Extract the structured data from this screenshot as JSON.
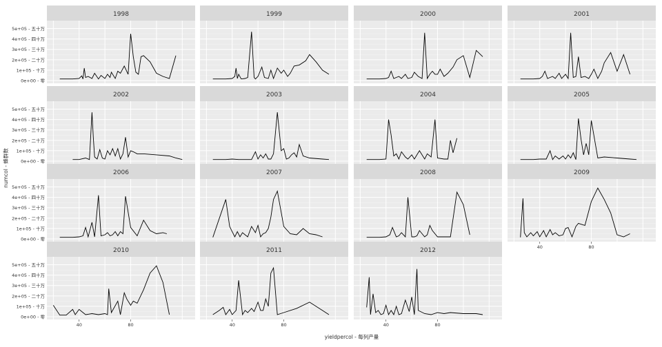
{
  "chart_data": {
    "type": "line",
    "layout": "facet_wrap",
    "xlabel": "yieldpercol - 每列产量",
    "ylabel": "numcol - 蜂群数",
    "ylim": [
      0,
      550000
    ],
    "y_ticks": [
      {
        "value": 0,
        "label": "0e+00 - 零"
      },
      {
        "value": 100000,
        "label": "1e+05 - 十万"
      },
      {
        "value": 200000,
        "label": "2e+05 - 二十万"
      },
      {
        "value": 300000,
        "label": "3e+05 - 三十万"
      },
      {
        "value": 400000,
        "label": "4e+05 - 四十万"
      },
      {
        "value": 500000,
        "label": "5e+05 - 五十万"
      }
    ],
    "x_ticks": [
      {
        "value": 40,
        "label": "40"
      },
      {
        "value": 80,
        "label": "80"
      }
    ],
    "xlim": [
      15,
      130
    ],
    "grid": true,
    "panels": [
      {
        "year": "1998",
        "x": [
          25,
          35,
          40,
          42,
          43,
          44,
          45,
          47,
          50,
          52,
          55,
          57,
          60,
          62,
          64,
          65,
          68,
          70,
          72,
          75,
          78,
          80,
          82,
          84,
          86,
          88,
          90,
          95,
          100,
          105,
          110,
          115
        ],
        "y": [
          15000,
          15000,
          20000,
          45000,
          15000,
          120000,
          30000,
          40000,
          20000,
          70000,
          15000,
          50000,
          20000,
          60000,
          30000,
          80000,
          20000,
          90000,
          70000,
          140000,
          60000,
          450000,
          230000,
          80000,
          60000,
          230000,
          240000,
          180000,
          70000,
          40000,
          20000,
          240000
        ]
      },
      {
        "year": "1999",
        "x": [
          25,
          35,
          40,
          42,
          43,
          44,
          45,
          47,
          50,
          52,
          55,
          57,
          58,
          60,
          63,
          65,
          68,
          70,
          72,
          75,
          78,
          80,
          83,
          85,
          88,
          92,
          97,
          100,
          105,
          110,
          115
        ],
        "y": [
          15000,
          15000,
          20000,
          40000,
          120000,
          20000,
          60000,
          15000,
          20000,
          30000,
          470000,
          30000,
          15000,
          40000,
          130000,
          30000,
          20000,
          100000,
          20000,
          120000,
          70000,
          100000,
          40000,
          70000,
          140000,
          150000,
          190000,
          250000,
          180000,
          100000,
          60000
        ]
      },
      {
        "year": "2000",
        "x": [
          25,
          35,
          40,
          42,
          44,
          46,
          48,
          50,
          52,
          55,
          57,
          60,
          62,
          65,
          68,
          70,
          72,
          74,
          76,
          78,
          80,
          82,
          85,
          88,
          92,
          95,
          100,
          105,
          110,
          115
        ],
        "y": [
          15000,
          15000,
          20000,
          30000,
          90000,
          20000,
          30000,
          40000,
          20000,
          60000,
          20000,
          30000,
          80000,
          40000,
          20000,
          460000,
          20000,
          60000,
          90000,
          60000,
          60000,
          110000,
          40000,
          70000,
          130000,
          200000,
          240000,
          30000,
          290000,
          230000
        ]
      },
      {
        "year": "2001",
        "x": [
          25,
          35,
          40,
          42,
          44,
          46,
          48,
          50,
          52,
          55,
          57,
          60,
          62,
          64,
          66,
          68,
          70,
          72,
          75,
          78,
          80,
          82,
          85,
          88,
          90,
          95,
          100,
          105,
          110
        ],
        "y": [
          15000,
          15000,
          20000,
          40000,
          90000,
          20000,
          30000,
          40000,
          20000,
          70000,
          20000,
          60000,
          20000,
          460000,
          30000,
          40000,
          230000,
          30000,
          40000,
          20000,
          60000,
          110000,
          20000,
          90000,
          170000,
          270000,
          90000,
          250000,
          60000
        ]
      },
      {
        "year": "2002",
        "x": [
          35,
          40,
          45,
          48,
          50,
          51,
          52,
          54,
          56,
          58,
          60,
          62,
          64,
          66,
          68,
          70,
          72,
          74,
          76,
          78,
          80,
          82,
          85,
          90,
          100,
          110,
          115,
          120
        ],
        "y": [
          15000,
          15000,
          30000,
          15000,
          470000,
          230000,
          40000,
          20000,
          110000,
          30000,
          20000,
          100000,
          60000,
          120000,
          50000,
          120000,
          20000,
          70000,
          230000,
          40000,
          100000,
          90000,
          70000,
          70000,
          60000,
          50000,
          30000,
          15000
        ]
      },
      {
        "year": "2003",
        "x": [
          25,
          35,
          40,
          45,
          50,
          55,
          58,
          60,
          62,
          64,
          66,
          68,
          70,
          72,
          75,
          78,
          80,
          82,
          84,
          86,
          88,
          90,
          92,
          95,
          100,
          110,
          115
        ],
        "y": [
          15000,
          15000,
          20000,
          15000,
          15000,
          15000,
          90000,
          20000,
          60000,
          30000,
          70000,
          20000,
          20000,
          70000,
          470000,
          100000,
          120000,
          20000,
          30000,
          60000,
          80000,
          40000,
          160000,
          50000,
          30000,
          20000,
          15000
        ]
      },
      {
        "year": "2004",
        "x": [
          25,
          35,
          40,
          42,
          44,
          46,
          48,
          50,
          52,
          55,
          57,
          60,
          62,
          64,
          66,
          70,
          72,
          75,
          78,
          80,
          85,
          88,
          90,
          92,
          95
        ],
        "y": [
          15000,
          15000,
          20000,
          400000,
          250000,
          50000,
          70000,
          20000,
          90000,
          40000,
          20000,
          60000,
          20000,
          60000,
          100000,
          20000,
          70000,
          40000,
          400000,
          30000,
          20000,
          20000,
          200000,
          80000,
          220000
        ]
      },
      {
        "year": "2005",
        "x": [
          25,
          35,
          40,
          45,
          48,
          50,
          52,
          55,
          58,
          60,
          62,
          64,
          66,
          68,
          70,
          72,
          74,
          76,
          78,
          80,
          85,
          90,
          100,
          110,
          115
        ],
        "y": [
          15000,
          15000,
          20000,
          20000,
          100000,
          15000,
          50000,
          20000,
          50000,
          20000,
          60000,
          30000,
          80000,
          15000,
          410000,
          210000,
          60000,
          170000,
          60000,
          390000,
          30000,
          40000,
          30000,
          20000,
          15000
        ]
      },
      {
        "year": "2006",
        "x": [
          25,
          35,
          40,
          43,
          45,
          47,
          50,
          52,
          55,
          57,
          60,
          62,
          64,
          66,
          68,
          70,
          72,
          74,
          76,
          80,
          85,
          90,
          95,
          100,
          105,
          108
        ],
        "y": [
          15000,
          15000,
          20000,
          30000,
          110000,
          20000,
          160000,
          20000,
          420000,
          30000,
          40000,
          60000,
          30000,
          40000,
          70000,
          30000,
          70000,
          50000,
          410000,
          110000,
          30000,
          180000,
          80000,
          50000,
          60000,
          50000
        ]
      },
      {
        "year": "2007",
        "x": [
          25,
          35,
          38,
          40,
          42,
          44,
          46,
          48,
          50,
          52,
          55,
          58,
          60,
          62,
          64,
          66,
          68,
          70,
          72,
          75,
          80,
          85,
          90,
          95,
          100,
          105,
          110
        ],
        "y": [
          15000,
          380000,
          120000,
          70000,
          20000,
          70000,
          20000,
          60000,
          40000,
          20000,
          120000,
          60000,
          130000,
          20000,
          50000,
          60000,
          100000,
          210000,
          380000,
          460000,
          120000,
          50000,
          40000,
          100000,
          50000,
          40000,
          20000
        ]
      },
      {
        "year": "2008",
        "x": [
          25,
          35,
          40,
          43,
          45,
          48,
          50,
          52,
          55,
          57,
          60,
          62,
          64,
          66,
          70,
          72,
          74,
          76,
          80,
          85,
          90,
          95,
          100,
          105
        ],
        "y": [
          15000,
          15000,
          20000,
          40000,
          110000,
          20000,
          30000,
          60000,
          20000,
          400000,
          20000,
          20000,
          30000,
          80000,
          20000,
          40000,
          130000,
          80000,
          20000,
          20000,
          20000,
          450000,
          330000,
          40000
        ]
      },
      {
        "year": "2009",
        "x": [
          25,
          27,
          28,
          30,
          33,
          35,
          38,
          40,
          43,
          45,
          48,
          50,
          52,
          55,
          58,
          60,
          62,
          65,
          68,
          70,
          75,
          80,
          85,
          90,
          95,
          100,
          105,
          110
        ],
        "y": [
          15000,
          390000,
          60000,
          20000,
          60000,
          30000,
          70000,
          20000,
          80000,
          20000,
          90000,
          40000,
          60000,
          30000,
          40000,
          100000,
          110000,
          20000,
          120000,
          150000,
          130000,
          360000,
          490000,
          380000,
          250000,
          40000,
          20000,
          50000
        ]
      },
      {
        "year": "2010",
        "x": [
          20,
          25,
          30,
          35,
          37,
          40,
          45,
          50,
          55,
          60,
          62,
          63,
          65,
          70,
          72,
          75,
          77,
          80,
          82,
          85,
          90,
          95,
          100,
          105,
          110
        ],
        "y": [
          110000,
          15000,
          15000,
          70000,
          20000,
          70000,
          20000,
          30000,
          20000,
          30000,
          20000,
          270000,
          40000,
          150000,
          20000,
          230000,
          170000,
          110000,
          150000,
          130000,
          260000,
          420000,
          490000,
          330000,
          20000
        ]
      },
      {
        "year": "2011",
        "x": [
          25,
          30,
          33,
          35,
          38,
          40,
          43,
          45,
          48,
          50,
          52,
          55,
          57,
          60,
          62,
          64,
          66,
          68,
          70,
          72,
          75,
          80,
          90,
          100,
          110,
          115
        ],
        "y": [
          20000,
          60000,
          90000,
          20000,
          70000,
          20000,
          60000,
          350000,
          20000,
          60000,
          40000,
          80000,
          50000,
          140000,
          60000,
          60000,
          170000,
          100000,
          420000,
          470000,
          20000,
          40000,
          80000,
          140000,
          60000,
          20000
        ]
      },
      {
        "year": "2012",
        "x": [
          25,
          27,
          28,
          30,
          32,
          34,
          36,
          38,
          40,
          42,
          44,
          46,
          48,
          50,
          52,
          55,
          58,
          60,
          62,
          64,
          65,
          70,
          75,
          80,
          85,
          90,
          100,
          110,
          115
        ],
        "y": [
          90000,
          380000,
          20000,
          220000,
          40000,
          60000,
          20000,
          30000,
          110000,
          20000,
          60000,
          20000,
          100000,
          20000,
          30000,
          160000,
          50000,
          190000,
          20000,
          460000,
          60000,
          30000,
          20000,
          40000,
          30000,
          40000,
          30000,
          30000,
          20000
        ]
      }
    ]
  }
}
